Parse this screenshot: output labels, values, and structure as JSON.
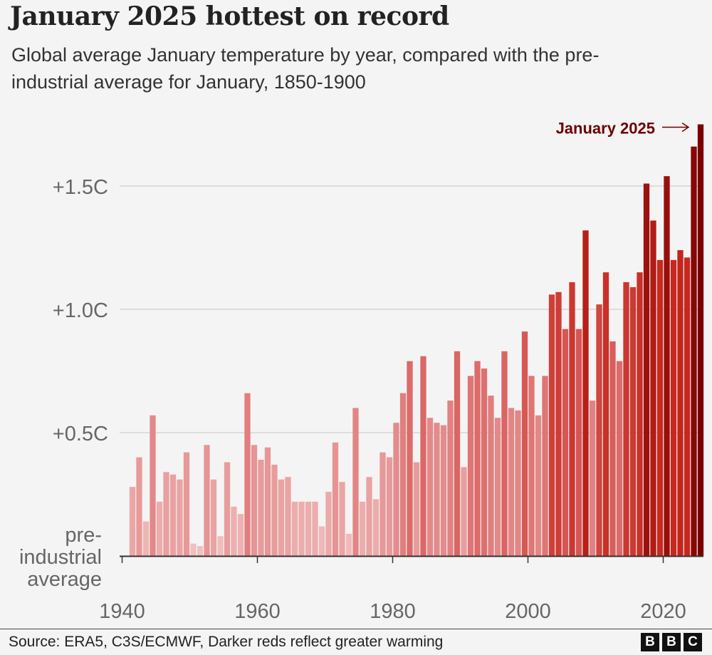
{
  "header": {
    "title": "January 2025 hottest on record",
    "subtitle": "Global average January temperature by year, compared with the pre-industrial average for January, 1850-1900"
  },
  "footer": {
    "source": "Source: ERA5, C3S/ECMWF, Darker reds reflect greater warming",
    "logo": [
      "B",
      "B",
      "C"
    ]
  },
  "chart_data": {
    "type": "bar",
    "x": [
      1941,
      1942,
      1943,
      1944,
      1945,
      1946,
      1947,
      1948,
      1949,
      1950,
      1951,
      1952,
      1953,
      1954,
      1955,
      1956,
      1957,
      1958,
      1959,
      1960,
      1961,
      1962,
      1963,
      1964,
      1965,
      1966,
      1967,
      1968,
      1969,
      1970,
      1971,
      1972,
      1973,
      1974,
      1975,
      1976,
      1977,
      1978,
      1979,
      1980,
      1981,
      1982,
      1983,
      1984,
      1985,
      1986,
      1987,
      1988,
      1989,
      1990,
      1991,
      1992,
      1993,
      1994,
      1995,
      1996,
      1997,
      1998,
      1999,
      2000,
      2001,
      2002,
      2003,
      2004,
      2005,
      2006,
      2007,
      2008,
      2009,
      2010,
      2011,
      2012,
      2013,
      2014,
      2015,
      2016,
      2017,
      2018,
      2019,
      2020,
      2021,
      2022,
      2023,
      2024,
      2025
    ],
    "values": [
      0.28,
      0.4,
      0.14,
      0.57,
      0.22,
      0.34,
      0.33,
      0.31,
      0.42,
      0.05,
      0.04,
      0.45,
      0.31,
      0.08,
      0.38,
      0.2,
      0.17,
      0.66,
      0.45,
      0.39,
      0.44,
      0.37,
      0.31,
      0.32,
      0.22,
      0.22,
      0.22,
      0.22,
      0.12,
      0.26,
      0.46,
      0.3,
      0.09,
      0.6,
      0.22,
      0.32,
      0.23,
      0.42,
      0.4,
      0.54,
      0.66,
      0.79,
      0.38,
      0.81,
      0.56,
      0.54,
      0.53,
      0.63,
      0.83,
      0.36,
      0.73,
      0.79,
      0.76,
      0.65,
      0.56,
      0.83,
      0.6,
      0.59,
      0.91,
      0.73,
      0.57,
      0.73,
      1.06,
      1.07,
      0.92,
      1.11,
      0.92,
      1.32,
      0.63,
      1.02,
      1.15,
      0.87,
      0.79,
      1.11,
      1.09,
      1.15,
      1.51,
      1.36,
      1.2,
      1.54,
      1.2,
      1.24,
      1.21,
      1.66,
      1.75
    ],
    "y_ticks": [
      {
        "value": 1.5,
        "label": "+1.5C"
      },
      {
        "value": 1.0,
        "label": "+1.0C"
      },
      {
        "value": 0.5,
        "label": "+0.5C"
      },
      {
        "value": 0,
        "label": "pre-\nindustrial\naverage"
      }
    ],
    "x_ticks": [
      1940,
      1960,
      1980,
      2000,
      2020
    ],
    "ylim": [
      0,
      1.8
    ],
    "annotation": {
      "text": "January 2025",
      "year": 2025,
      "color": "#6b0000"
    },
    "colors": {
      "lightest": "#f2c4c4",
      "mid": "#e07a7a",
      "dark": "#c8281e",
      "darkest": "#7a0000"
    },
    "gridlines": true
  }
}
